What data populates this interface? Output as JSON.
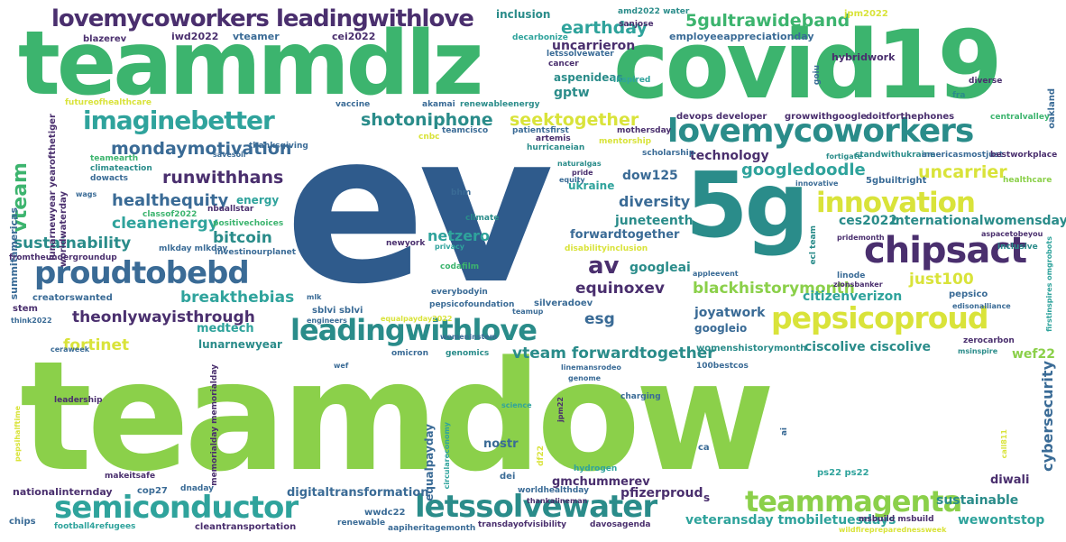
{
  "title": "hashtag word cloud",
  "colors": {
    "navy": "#2f5b8c",
    "blue": "#3a6b96",
    "teal": "#2a8c8a",
    "cyan": "#2fa39c",
    "green": "#3cb46e",
    "lime": "#8bd04a",
    "yellow": "#d9e33a",
    "purple": "#4a2f6e",
    "violet": "#5b3f8c"
  },
  "words": {
    "ev": "ev",
    "teamdow": "teamdow",
    "teammdlz": "teammdlz",
    "covid19": "covid19",
    "g5": "5g",
    "lovemycoworkers": "lovemycoworkers",
    "lovemycoworkers_leadingwithlove": "lovemycoworkers leadingwithlove",
    "imaginebetter": "imaginebetter",
    "innovation": "innovation",
    "chipsact": "chipsact",
    "pepsicoproud": "pepsicoproud",
    "leadingwithlove": "leadingwithlove",
    "proudtobebd": "proudtobebd",
    "semiconductor": "semiconductor",
    "letssolvewater": "letssolvewater",
    "teammagenta": "teammagenta",
    "g5gultrawideband": "5gultrawideband",
    "earthday": "earthday",
    "shotoniphone": "shotoniphone",
    "seektogether": "seektogether",
    "mondaymotivation": "mondaymotivation",
    "runwithhans": "runwithhans",
    "healthequity": "healthequity",
    "cleanenergy": "cleanenergy",
    "bitcoin": "bitcoin",
    "sustainability": "sustainability",
    "breakthebias": "breakthebias",
    "theonlywayisthrough": "theonlywayisthrough",
    "fortinet": "fortinet",
    "vteam": "vteam",
    "uncarrier": "uncarrier",
    "googledoodle": "googledoodle",
    "dow125": "dow125",
    "technology": "technology",
    "diversity": "diversity",
    "juneteenth": "juneteenth",
    "forwardtogether": "forwardtogether",
    "netzero": "netzero",
    "av": "av",
    "equinoxev": "equinoxev",
    "blackhistorymonth": "blackhistorymonth",
    "just100": "just100",
    "esg": "esg",
    "vteam_forwardtogether": "vteam forwardtogether",
    "ces2022": "ces2022",
    "internationalwomensday": "internationalwomensday",
    "cybersecurity": "cybersecurity",
    "sustainable": "sustainable",
    "wewontstop": "wewontstop",
    "veteransday_tmobiletuesdays": "veteransday tmobiletuesdays",
    "ciscolive_ciscolive": "ciscolive ciscolive",
    "joyatwork": "joyatwork",
    "citizenverizon": "citizenverizon",
    "googleai": "googleai",
    "googleio": "googleio",
    "pfizerproud": "pfizerproud",
    "gmchummerev": "gmchummerev",
    "digitaltransformation": "digitaltransformation",
    "nostr": "nostr",
    "equalpayday": "equalpayday",
    "medtech": "medtech",
    "lunarnewyear": "lunarnewyear",
    "wef22": "wef22",
    "diwali": "diwali",
    "uncarrieron": "uncarrieron",
    "gptw": "gptw",
    "aspenideas": "aspenideas",
    "ukraine": "ukraine",
    "inclusion": "inclusion",
    "iwd2022": "iwd2022",
    "vteamer": "vteamer",
    "cei2022": "cei2022",
    "blazerev": "blazerev",
    "amd2022_water": "amd2022 water",
    "sanjose": "sanjose",
    "currybrand": "currybrand",
    "employeeappreciationday": "employeeappreciationday",
    "jpm2022": "jpm2022",
    "hybridwork": "hybridwork",
    "decarbonize": "decarbonize",
    "letssolvewater_small": "letssolvewater",
    "cancer": "cancer",
    "inspired": "inspired",
    "goiu": "goiu",
    "diverse": "diverse",
    "oakland": "oakland",
    "fra": "fra",
    "centralvalley": "centralvalley",
    "devops_developer": "devops developer",
    "growwithgoogle": "growwithgoogle",
    "doitforthephones": "doitforthephones",
    "futureofhealthcare": "futureofhealthcare",
    "vaccine": "vaccine",
    "akamai": "akamai",
    "renewableenergy": "renewableenergy",
    "teamcisco": "teamcisco",
    "patientsfirst": "patientsfirst",
    "artemis": "artemis",
    "hurricaneian": "hurricaneian",
    "cnbc": "cnbc",
    "mothersday": "mothersday",
    "mentorship": "mentorship",
    "scholarship": "scholarship",
    "standwithukraine": "standwithukraine",
    "americasmostjust": "americasmostjust",
    "bestworkplace": "bestworkplace",
    "thanksgiving": "thanksgiving",
    "teamearth": "teamearth",
    "climateaction": "climateaction",
    "dowacts": "dowacts",
    "summitamericas": "summitamericas",
    "lunarnewyear_yearofthetiger": "lunarnewyear yearofthetiger",
    "worldwaterday": "worldwaterday",
    "energy": "energy",
    "naturalgas": "naturalgas",
    "pride": "pride",
    "equity": "equity",
    "fortigate": "fortigate",
    "innovative": "innovative",
    "g5gbuiltright": "5gbuiltright",
    "healthcare": "healthcare",
    "nbaallstar": "nbaallstar",
    "classof2022": "classof2022",
    "positivechoices": "positivechoices",
    "investinourplanet": "investinourplanet",
    "mlkday_mlkday": "mlkday mlkday",
    "fromtheundergroundup": "fromtheundergroundup",
    "bhm": "bhm",
    "climate": "climate",
    "newyork": "newyork",
    "privacy": "privacy",
    "disabilityinclusion": "disabilityinclusion",
    "ecl_team": "ecl team",
    "pridemonth": "pridemonth",
    "aspacetobeyou": "aspacetobeyou",
    "inclusive": "inclusive",
    "linode": "linode",
    "zionsbanker": "zionsbanker",
    "appleevent": "appleevent",
    "pepsico": "pepsico",
    "creatorswanted": "creatorswanted",
    "codafilm": "codafilm",
    "everybodyin": "everybodyin",
    "mlk": "mlk",
    "sblvi_sblvi": "sblvi sblvi",
    "stem": "stem",
    "think2022": "think2022",
    "engineers": "engineers",
    "equalpayday2022": "equalpayday2022",
    "teamup": "teamup",
    "silveradoev": "silveradoev",
    "pepsicofoundation": "pepsicofoundation",
    "womeninstem": "womeninstem",
    "edisonalliance": "edisonalliance",
    "firstinspires_omgrobots": "firstinspires omgrobots",
    "zerocarbon": "zerocarbon",
    "msinspire": "msinspire",
    "womenshistorymonth": "womenshistorymonth",
    "ceraweek": "ceraweek",
    "omicron": "omicron",
    "genomics": "genomics",
    "linemansrodeo": "linemansrodeo",
    "genome": "genome",
    "bestcos100": "100bestcos",
    "wef": "wef",
    "leadership": "leadership",
    "science": "science",
    "charging": "charging",
    "jpm22": "jpm22",
    "ai": "ai",
    "memorialday_memorialday": "memorialday memorialday",
    "pepsihalftime": "pepsihalftime",
    "circulareconomy": "circulareconomy",
    "df22": "df22",
    "ca": "ca",
    "call811": "call811",
    "makeitsafe": "makeitsafe",
    "hydrogen": "hydrogen",
    "dei": "dei",
    "ps22_ps22": "ps22 ps22",
    "nationalinternday": "nationalinternday",
    "cop27": "cop27",
    "dnaday": "dnaday",
    "worldhealthday": "worldhealthday",
    "thankalineman": "thankalineman",
    "s": "s",
    "chips": "chips",
    "football4refugees": "football4refugees",
    "cleantransportation": "cleantransportation",
    "renewable": "renewable",
    "aapiheritagemonth": "aapiheritagemonth",
    "wwdc22": "wwdc22",
    "transdayofvisibility": "transdayofvisibility",
    "davosagenda": "davosagenda",
    "msbuild_msbuild": "msbuild msbuild",
    "wildfirepreparednessweek": "wildfirepreparednessweek",
    "savesoil": "savesoil",
    "wags": "wags"
  }
}
